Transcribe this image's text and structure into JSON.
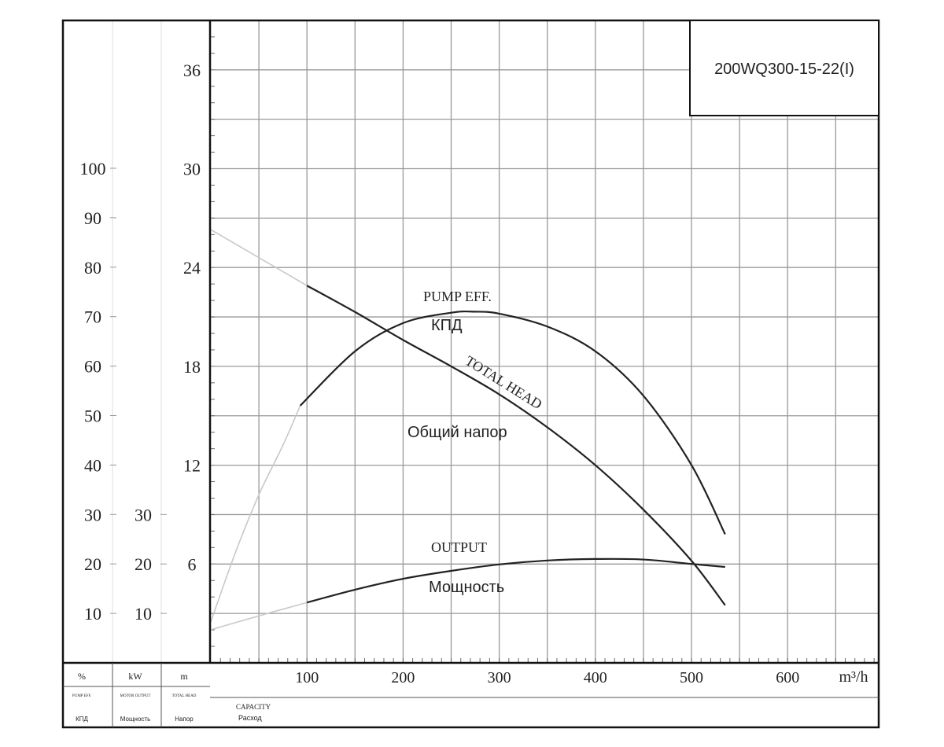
{
  "chart_data": {
    "type": "line",
    "title": "200WQ300-15-22(I)",
    "xlabel": "CAPACITY",
    "xlabel_ru": "Расход",
    "x_unit": "m³/h",
    "xlim": [
      0,
      700
    ],
    "x_ticks": [
      "100",
      "200",
      "300",
      "400",
      "500",
      "600"
    ],
    "axes": [
      {
        "unit": "%",
        "name": "PUMP EFF.",
        "name_ru": "КПД",
        "ylim": [
          0,
          100
        ],
        "ticks": [
          "10",
          "20",
          "30",
          "40",
          "50",
          "60",
          "70",
          "80",
          "90",
          "100"
        ]
      },
      {
        "unit": "kW",
        "name": "MOTOR OUTPUT",
        "name_ru": "Мощность",
        "ylim": [
          0,
          30
        ],
        "ticks": [
          "10",
          "20",
          "30"
        ]
      },
      {
        "unit": "m",
        "name": "TOTAL HEAD",
        "name_ru": "Напор",
        "ylim": [
          0,
          38
        ],
        "ticks": [
          "6",
          "12",
          "18",
          "24",
          "30",
          "36"
        ]
      }
    ],
    "grid": true,
    "series": [
      {
        "name": "TOTAL HEAD",
        "label_ru": "Общий напор",
        "axis": "m",
        "dashed": {
          "x": [
            0,
            50,
            100
          ],
          "y": [
            26.3,
            24.6,
            22.9
          ]
        },
        "solid": {
          "x": [
            100,
            150,
            200,
            250,
            300,
            350,
            400,
            450,
            500,
            535
          ],
          "y": [
            22.9,
            21.3,
            19.6,
            18.0,
            16.3,
            14.3,
            12.0,
            9.3,
            6.2,
            3.5
          ]
        }
      },
      {
        "name": "PUMP EFF.",
        "label_ru": "КПД",
        "axis": "%",
        "dashed": {
          "x": [
            0,
            25,
            50,
            75,
            93
          ],
          "y": [
            8.3,
            22,
            34,
            44,
            52
          ]
        },
        "solid": {
          "x": [
            93,
            150,
            200,
            250,
            275,
            300,
            350,
            400,
            450,
            500,
            535
          ],
          "y": [
            52,
            63,
            68.7,
            70.8,
            71,
            70.6,
            68,
            63,
            54,
            40,
            26
          ]
        }
      },
      {
        "name": "OUTPUT",
        "label_ru": "Мощность",
        "axis": "kW",
        "dashed": {
          "x": [
            0,
            50,
            100
          ],
          "y": [
            6.7,
            9.5,
            12.2
          ]
        },
        "solid": {
          "x": [
            100,
            150,
            200,
            250,
            300,
            350,
            400,
            450,
            500,
            535
          ],
          "y": [
            12.2,
            14.8,
            17.0,
            18.6,
            19.9,
            20.7,
            21.0,
            20.9,
            20.0,
            19.4
          ]
        }
      }
    ],
    "footer": {
      "units": [
        "%",
        "kW",
        "m"
      ],
      "names": [
        "PUMP EFF.",
        "MOTOR OUTPUT",
        "TOTAL HEAD"
      ],
      "names_ru": [
        "КПД",
        "Мощность",
        "Напор"
      ]
    }
  }
}
